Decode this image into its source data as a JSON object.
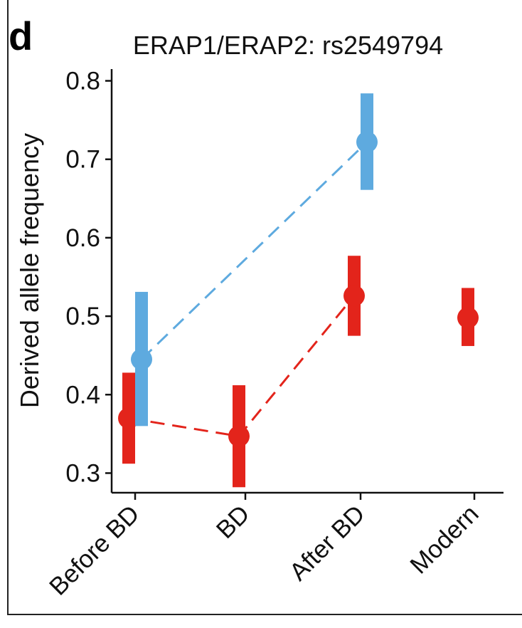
{
  "panel_letter": "d",
  "chart_data": {
    "type": "scatter",
    "title": "ERAP1/ERAP2: rs2549794",
    "xlabel": "",
    "ylabel": "Derived allele frequency",
    "categories": [
      "Before BD",
      "BD",
      "After BD",
      "Modern"
    ],
    "ylim": [
      0.275,
      0.815
    ],
    "yticks": [
      0.3,
      0.4,
      0.5,
      0.6,
      0.7,
      0.8
    ],
    "ytick_labels": [
      "0.3",
      "0.4",
      "0.5",
      "0.6",
      "0.7",
      "0.8"
    ],
    "grid": false,
    "legend": "none",
    "series": [
      {
        "color": "#e3241b",
        "connector": "dashed",
        "points": [
          {
            "category": "Before BD",
            "y": 0.37,
            "lo": 0.312,
            "hi": 0.428
          },
          {
            "category": "BD",
            "y": 0.347,
            "lo": 0.282,
            "hi": 0.412
          },
          {
            "category": "After BD",
            "y": 0.526,
            "lo": 0.475,
            "hi": 0.577
          },
          {
            "category": "Modern",
            "y": 0.498,
            "lo": 0.462,
            "hi": 0.536
          }
        ]
      },
      {
        "color": "#5eaadf",
        "connector": "dashed",
        "points": [
          {
            "category": "Before BD",
            "y": 0.445,
            "lo": 0.36,
            "hi": 0.531
          },
          {
            "category": "After BD",
            "y": 0.722,
            "lo": 0.661,
            "hi": 0.784
          }
        ]
      }
    ]
  }
}
